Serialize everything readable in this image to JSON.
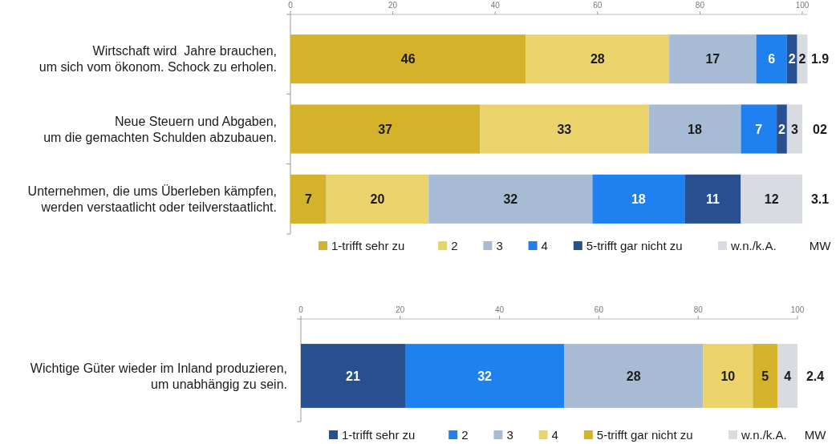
{
  "chart_data": [
    {
      "type": "bar",
      "orientation": "horizontal",
      "stacked": true,
      "categories": [
        "Wirtschaft wird  Jahre brauchen,\num sich vom ökonom. Schock zu erholen.",
        "Neue Steuern und Abgaben,\num die gemachten Schulden abzubauen.",
        "Unternehmen, die ums Überleben kämpfen,\nwerden verstaatlicht oder teilverstaatlicht."
      ],
      "series": [
        {
          "name": "1-trifft sehr zu",
          "color": "#d4b229",
          "values": [
            46,
            37,
            7
          ]
        },
        {
          "name": "2",
          "color": "#ead36b",
          "values": [
            28,
            33,
            20
          ]
        },
        {
          "name": "3",
          "color": "#a8bbd5",
          "values": [
            17,
            18,
            32
          ]
        },
        {
          "name": "4",
          "color": "#1f80f0",
          "values": [
            6,
            7,
            18
          ]
        },
        {
          "name": "5-trifft gar nicht zu",
          "color": "#284f8f",
          "values": [
            2,
            2,
            11
          ]
        },
        {
          "name": "w.n./k.A.",
          "color": "#d8dce2",
          "values": [
            2,
            3,
            12
          ]
        }
      ],
      "xlim": [
        0,
        101
      ],
      "xticks": [
        0,
        20,
        40,
        60,
        80,
        100
      ],
      "data_labels": true,
      "legend": "bottom",
      "annotations": [
        "1.9",
        "02",
        "3.1",
        "MW"
      ]
    },
    {
      "type": "bar",
      "orientation": "horizontal",
      "stacked": true,
      "categories": [
        "Wichtige Güter wieder im Inland produzieren,\num unabhängig zu sein."
      ],
      "series": [
        {
          "name": "1-trifft sehr zu",
          "color": "#284f8f",
          "values": [
            21
          ]
        },
        {
          "name": "2",
          "color": "#1f80f0",
          "values": [
            32
          ]
        },
        {
          "name": "3",
          "color": "#a8bbd5",
          "values": [
            28
          ]
        },
        {
          "name": "4",
          "color": "#ead36b",
          "values": [
            10
          ]
        },
        {
          "name": "5-trifft gar nicht zu",
          "color": "#d4b229",
          "values": [
            5
          ]
        },
        {
          "name": "w.n./k.A.",
          "color": "#d8dce2",
          "values": [
            4
          ]
        }
      ],
      "xlim": [
        0,
        100
      ],
      "xticks": [
        0,
        20,
        40,
        60,
        80,
        100
      ],
      "data_labels": true,
      "legend": "bottom",
      "annotations": [
        "2.4",
        "MW"
      ]
    }
  ]
}
